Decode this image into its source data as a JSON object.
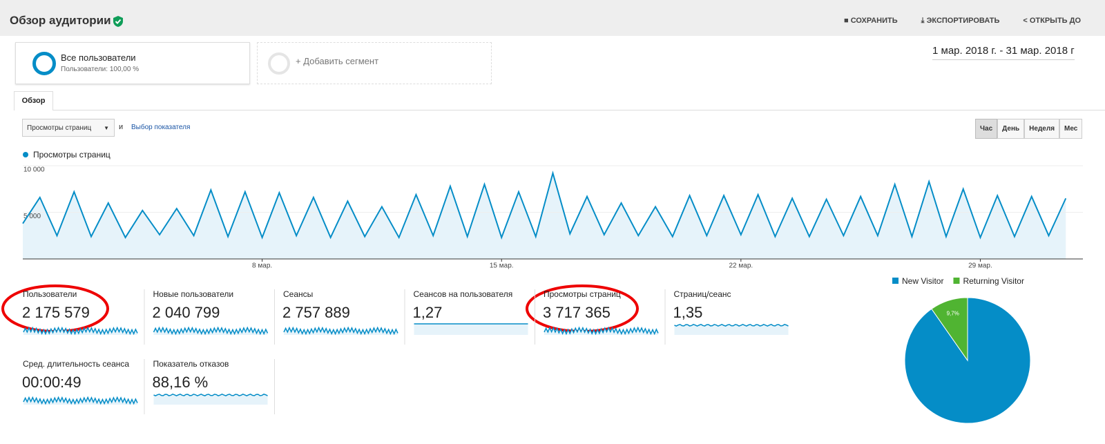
{
  "header": {
    "title": "Обзор аудитории",
    "actions": [
      "СОХРАНИТЬ",
      "ЭКСПОРТИРОВАТЬ",
      "ОТКРЫТЬ ДО"
    ]
  },
  "segments": {
    "all_title": "Все пользователи",
    "all_sub": "Пользователи: 100,00 %",
    "add": "+ Добавить сегмент"
  },
  "date_range": "1 мар. 2018 г. - 31 мар. 2018 г",
  "tab": "Обзор",
  "controls": {
    "metric": "Просмотры страниц",
    "and": "и",
    "choose": "Выбор показателя",
    "periods": [
      "Час",
      "День",
      "Неделя",
      "Мес"
    ]
  },
  "metrics": [
    {
      "label": "Пользователи",
      "value": "2 175 579"
    },
    {
      "label": "Новые пользователи",
      "value": "2 040 799"
    },
    {
      "label": "Сеансы",
      "value": "2 757 889"
    },
    {
      "label": "Сеансов на пользователя",
      "value": "1,27"
    },
    {
      "label": "Просмотры страниц",
      "value": "3 717 365"
    },
    {
      "label": "Страниц/сеанс",
      "value": "1,35"
    },
    {
      "label": "Сред. длительность сеанса",
      "value": "00:00:49"
    },
    {
      "label": "Показатель отказов",
      "value": "88,16 %"
    }
  ],
  "chart_data": [
    {
      "type": "line",
      "series": [
        {
          "name": "Просмотры страниц",
          "color": "#058dc7",
          "values": [
            3800,
            6600,
            2500,
            7200,
            2400,
            6000,
            2300,
            5200,
            2600,
            5400,
            2500,
            7400,
            2400,
            7200,
            2300,
            7100,
            2500,
            6600,
            2300,
            6200,
            2400,
            5600,
            2300,
            6900,
            2500,
            7800,
            2400,
            8000,
            2300,
            7200,
            2400,
            9200,
            2700,
            6700,
            2600,
            6000,
            2500,
            5600,
            2400,
            6800,
            2500,
            6800,
            2600,
            6900,
            2400,
            6500,
            2400,
            6400,
            2500,
            6700,
            2500,
            8000,
            2400,
            8300,
            2400,
            7500,
            2300,
            6800,
            2400,
            6700,
            2500,
            6500
          ]
        }
      ],
      "x": [
        0,
        0.5,
        1,
        1.5,
        2,
        2.5,
        3,
        3.5,
        4,
        4.5,
        5,
        5.5,
        6,
        6.5,
        7,
        7.5,
        8,
        8.5,
        9,
        9.5,
        10,
        10.5,
        11,
        11.5,
        12,
        12.5,
        13,
        13.5,
        14,
        14.5,
        15,
        15.5,
        16,
        16.5,
        17,
        17.5,
        18,
        18.5,
        19,
        19.5,
        20,
        20.5,
        21,
        21.5,
        22,
        22.5,
        23,
        23.5,
        24,
        24.5,
        25,
        25.5,
        26,
        26.5,
        27,
        27.5,
        28,
        28.5,
        29,
        29.5,
        30,
        30.5
      ],
      "xlim": [
        0,
        31
      ],
      "xticks": [
        {
          "value": 7,
          "label": "8 мар."
        },
        {
          "value": 14,
          "label": "15 мар."
        },
        {
          "value": 21,
          "label": "22 мар."
        },
        {
          "value": 28,
          "label": "29 мар."
        }
      ],
      "ylim": [
        0,
        10000
      ],
      "yticks": [
        {
          "value": 5000,
          "label": "5 000"
        },
        {
          "value": 10000,
          "label": "10 000"
        }
      ],
      "grid": true
    },
    {
      "type": "pie",
      "categories": [
        "New Visitor",
        "Returning Visitor"
      ],
      "colors": [
        "#058dc7",
        "#50b432"
      ],
      "values": [
        90.3,
        9.7
      ],
      "value_labels": [
        "90,3%",
        "9,7%"
      ]
    }
  ]
}
